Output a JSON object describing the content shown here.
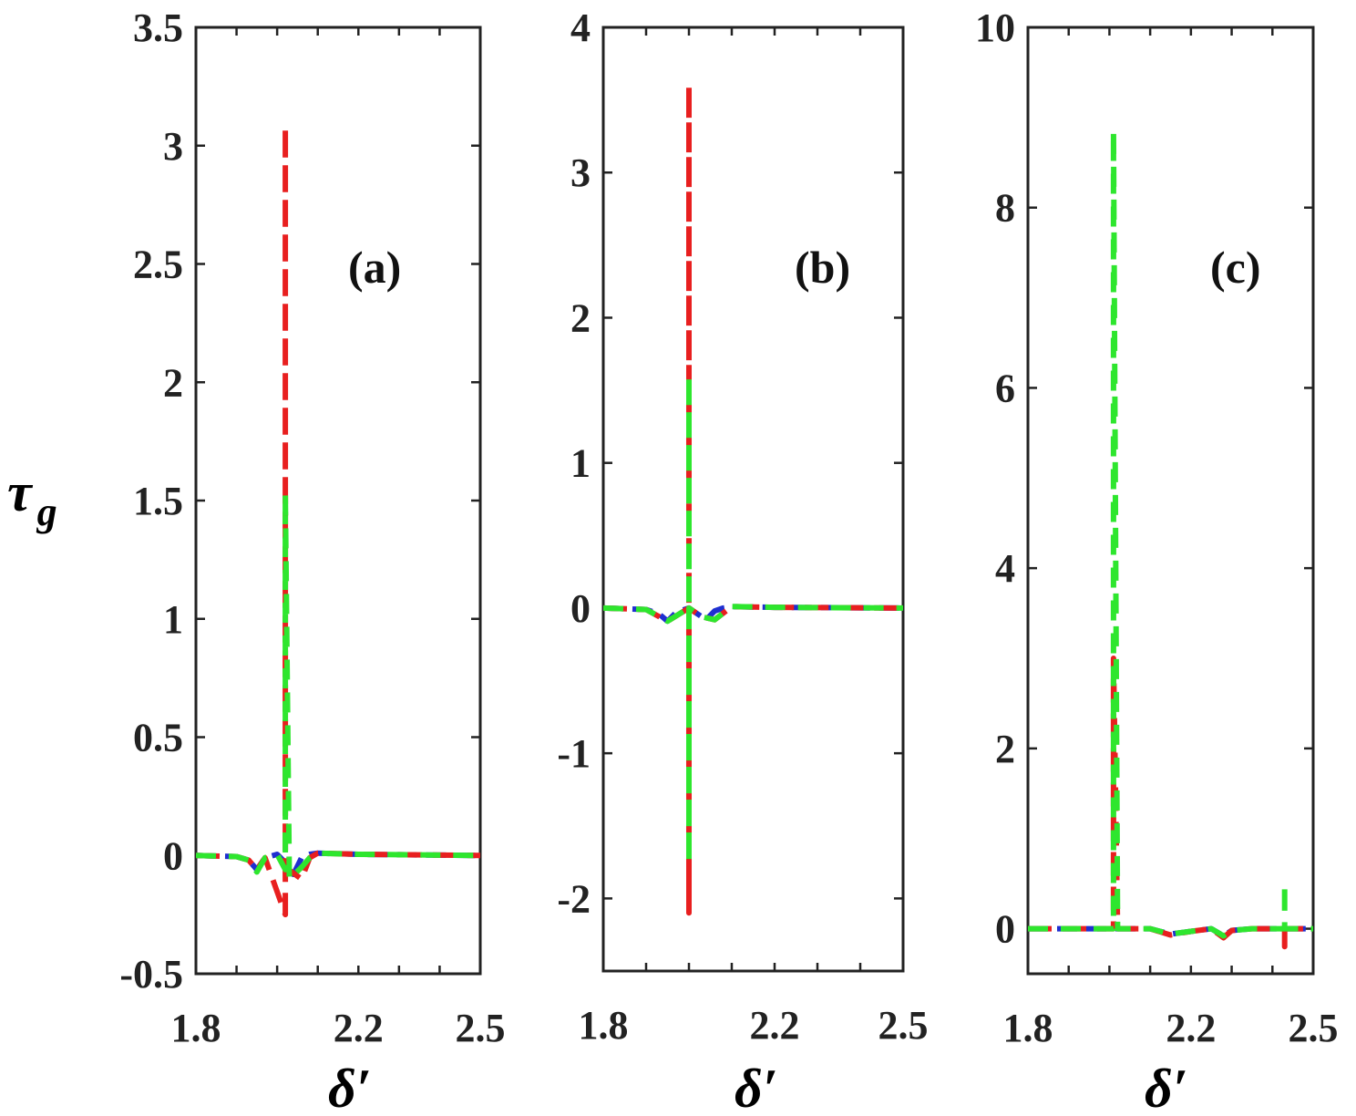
{
  "figure": {
    "ylabel_main": "τ",
    "ylabel_sub": "g",
    "xlabel": "δ′"
  },
  "colors": {
    "blue": "#1f2fd0",
    "red": "#e81f1f",
    "green": "#2ee62e",
    "axis": "#222222"
  },
  "chart_data": [
    {
      "type": "line",
      "panel_label": "(a)",
      "xlim": [
        1.8,
        2.5
      ],
      "ylim": [
        -0.5,
        3.5
      ],
      "xticks": [
        "1.8",
        "2.2",
        "2.5"
      ],
      "yticks": [
        "-0.5",
        "0",
        "0.5",
        "1",
        "1.5",
        "2",
        "2.5",
        "3",
        "3.5"
      ],
      "ytick_values": [
        -0.5,
        0,
        0.5,
        1,
        1.5,
        2,
        2.5,
        3,
        3.5
      ],
      "xtick_values": [
        1.8,
        2.2,
        2.5
      ],
      "series": [
        {
          "name": "blue",
          "style": "dashed",
          "x": [
            1.8,
            1.9,
            1.93,
            1.95,
            1.97,
            2.0,
            2.02,
            2.04,
            2.06,
            2.08,
            2.1,
            2.2,
            2.5
          ],
          "y": [
            0,
            -0.005,
            -0.02,
            -0.06,
            -0.01,
            0.005,
            -0.03,
            -0.08,
            -0.01,
            0.005,
            0.01,
            0.005,
            0
          ]
        },
        {
          "name": "red",
          "style": "dashed",
          "x": [
            1.8,
            1.9,
            1.93,
            1.95,
            1.97,
            2.02,
            2.02,
            2.02,
            2.06,
            2.08,
            2.1,
            2.2,
            2.5
          ],
          "y": [
            0,
            -0.005,
            -0.02,
            -0.06,
            -0.01,
            -0.25,
            3.08,
            -0.05,
            -0.1,
            -0.01,
            0.01,
            0.005,
            0
          ]
        },
        {
          "name": "green",
          "style": "dashed",
          "x": [
            1.8,
            1.9,
            1.93,
            1.95,
            1.97,
            2.0,
            2.02,
            2.02,
            2.03,
            2.06,
            2.08,
            2.1,
            2.2,
            2.5
          ],
          "y": [
            0,
            -0.005,
            -0.02,
            -0.07,
            -0.01,
            0.005,
            -0.06,
            1.53,
            -0.1,
            -0.05,
            -0.01,
            0.01,
            0.005,
            0
          ]
        }
      ]
    },
    {
      "type": "line",
      "panel_label": "(b)",
      "xlim": [
        1.8,
        2.5
      ],
      "ylim": [
        -2.5,
        4
      ],
      "xticks": [
        "1.8",
        "2.2",
        "2.5"
      ],
      "yticks": [
        "-2",
        "-1",
        "0",
        "1",
        "2",
        "3",
        "4"
      ],
      "ytick_values": [
        -2,
        -1,
        0,
        1,
        2,
        3,
        4
      ],
      "xtick_values": [
        1.8,
        2.2,
        2.5
      ],
      "series": [
        {
          "name": "blue",
          "style": "dashed",
          "x": [
            1.8,
            1.9,
            1.93,
            1.95,
            1.97,
            2.0,
            2.02,
            2.04,
            2.06,
            2.08,
            2.1,
            2.2,
            2.5
          ],
          "y": [
            0,
            -0.01,
            -0.04,
            -0.09,
            -0.03,
            0.0,
            -0.04,
            -0.08,
            -0.02,
            0.0,
            0.01,
            0.005,
            0
          ]
        },
        {
          "name": "red",
          "style": "dashed",
          "x": [
            1.8,
            1.9,
            1.95,
            2.0,
            2.0,
            2.0,
            2.0,
            2.03,
            2.06,
            2.1,
            2.2,
            2.5
          ],
          "y": [
            0,
            -0.01,
            -0.09,
            0.0,
            3.6,
            -2.1,
            0.0,
            -0.06,
            -0.08,
            0.01,
            0.005,
            0
          ]
        },
        {
          "name": "green",
          "style": "dashed",
          "x": [
            1.8,
            1.9,
            1.95,
            2.0,
            2.0,
            2.0,
            2.0,
            2.03,
            2.06,
            2.1,
            2.2,
            2.5
          ],
          "y": [
            0,
            -0.01,
            -0.09,
            0.0,
            1.6,
            -1.75,
            0.0,
            -0.06,
            -0.08,
            0.01,
            0.005,
            0
          ]
        }
      ]
    },
    {
      "type": "line",
      "panel_label": "(c)",
      "xlim": [
        1.8,
        2.5
      ],
      "ylim": [
        -0.5,
        10
      ],
      "xticks": [
        "1.8",
        "2.2",
        "2.5"
      ],
      "yticks": [
        "0",
        "2",
        "4",
        "6",
        "8",
        "10"
      ],
      "ytick_values": [
        0,
        2,
        4,
        6,
        8,
        10
      ],
      "xtick_values": [
        1.8,
        2.2,
        2.5
      ],
      "series": [
        {
          "name": "blue",
          "style": "dashed",
          "x": [
            1.8,
            2.0,
            2.1,
            2.15,
            2.2,
            2.25,
            2.28,
            2.3,
            2.35,
            2.4,
            2.5
          ],
          "y": [
            0,
            0,
            0,
            -0.06,
            -0.03,
            0,
            -0.08,
            -0.02,
            0,
            0,
            0
          ]
        },
        {
          "name": "red",
          "style": "dashed",
          "x": [
            1.8,
            2.0,
            2.01,
            2.01,
            2.02,
            2.1,
            2.15,
            2.2,
            2.25,
            2.28,
            2.3,
            2.35,
            2.43,
            2.43,
            2.43,
            2.5
          ],
          "y": [
            0,
            0,
            0,
            3.0,
            0,
            0,
            -0.07,
            -0.03,
            0,
            -0.1,
            -0.02,
            0,
            0,
            -0.2,
            0,
            0
          ]
        },
        {
          "name": "green",
          "style": "dashed",
          "x": [
            1.8,
            2.0,
            2.01,
            2.01,
            2.02,
            2.1,
            2.15,
            2.2,
            2.25,
            2.28,
            2.3,
            2.35,
            2.43,
            2.43,
            2.43,
            2.5
          ],
          "y": [
            0,
            0,
            0,
            8.85,
            0,
            0,
            -0.06,
            -0.03,
            0,
            -0.08,
            -0.02,
            0,
            0,
            0.5,
            0,
            0
          ]
        }
      ]
    }
  ]
}
